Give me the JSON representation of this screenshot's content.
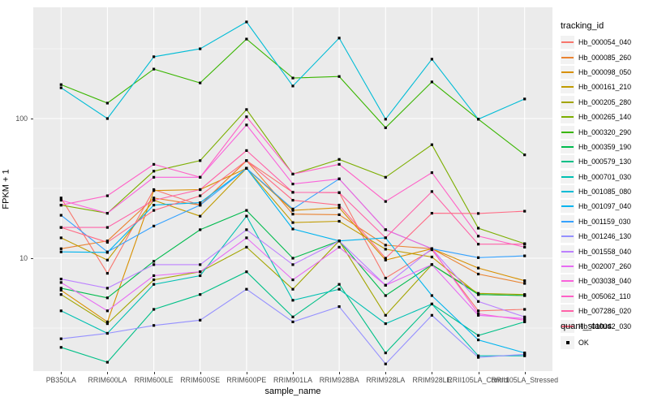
{
  "chart_data": {
    "type": "line",
    "title": "",
    "xlabel": "sample_name",
    "ylabel": "FPKM + 1",
    "y_scale": "log10",
    "ylim": [
      1.55,
      630
    ],
    "grid": "on",
    "legend_position": "right",
    "colors": {
      "panel_bg": "#EBEBEB",
      "grid": "#FFFFFF",
      "tick_text": "#4D4D4D",
      "tick_mark": "#333333",
      "point": "#000000",
      "legend_key_bg": "#F2F2F2"
    },
    "y_ticks": [
      {
        "value": 100,
        "label": "100"
      },
      {
        "value": 10,
        "label": "10"
      }
    ],
    "y_minor": [
      3.162,
      31.62,
      316.2
    ],
    "categories": [
      "PB350LA",
      "RRIM600LA",
      "RRIM600LE",
      "RRIM600SE",
      "RRIM600PE",
      "RRIM901LA",
      "RRIM928BA",
      "RRIM928LA",
      "RRIM928LE",
      "RRII105LA_Control",
      "RRII105LA_Stressed"
    ],
    "legend_title": "tracking_id",
    "quant_legend": {
      "title": "quant_status",
      "item_label": "OK"
    },
    "series": [
      {
        "name": "Hb_000054_040",
        "color": "#F8766D",
        "values": [
          27,
          7.8,
          31,
          24,
          50,
          29.6,
          29.5,
          7.2,
          11.5,
          4.2,
          4.3
        ]
      },
      {
        "name": "Hb_000085_260",
        "color": "#EA8331",
        "values": [
          11.7,
          13.3,
          27,
          24,
          50,
          20.7,
          20.5,
          12.4,
          11.7,
          7.7,
          6.6
        ]
      },
      {
        "name": "Hb_000098_050",
        "color": "#D89000",
        "values": [
          5.9,
          3.5,
          30.5,
          31,
          44,
          22,
          23,
          9.7,
          11.7,
          8.5,
          6.9
        ]
      },
      {
        "name": "Hb_000161_210",
        "color": "#C09B00",
        "values": [
          14,
          9.7,
          26,
          20,
          44,
          18,
          18.4,
          11.6,
          10.2,
          5.5,
          5.4
        ]
      },
      {
        "name": "Hb_000205_280",
        "color": "#A3A500",
        "values": [
          5.5,
          3.4,
          7,
          8,
          12,
          6,
          13.3,
          3.9,
          9,
          5.6,
          5.5
        ]
      },
      {
        "name": "Hb_000265_140",
        "color": "#7CAE00",
        "values": [
          24,
          21,
          42,
          50,
          116,
          40,
          51,
          38,
          65,
          16.4,
          12.7
        ]
      },
      {
        "name": "Hb_000320_290",
        "color": "#39B600",
        "values": [
          175,
          129,
          226,
          180,
          371,
          195,
          200,
          86,
          183,
          99,
          55
        ]
      },
      {
        "name": "Hb_000359_190",
        "color": "#00BB4E",
        "values": [
          6.1,
          5.2,
          9.5,
          16,
          22,
          10,
          13.3,
          5.4,
          9,
          5.5,
          5.4
        ]
      },
      {
        "name": "Hb_000579_130",
        "color": "#00C087",
        "values": [
          2.3,
          1.8,
          4.3,
          5.5,
          8,
          3.8,
          6.5,
          2.1,
          4.7,
          2.8,
          3.5
        ]
      },
      {
        "name": "Hb_000701_030",
        "color": "#00C0B2",
        "values": [
          4.2,
          2.9,
          6.5,
          7.5,
          20,
          5,
          6,
          3.4,
          4.7,
          2.0,
          2.0
        ]
      },
      {
        "name": "Hb_001085_080",
        "color": "#00BCD6",
        "values": [
          166,
          100,
          277,
          316,
          492,
          171,
          377,
          99,
          266,
          99,
          138
        ]
      },
      {
        "name": "Hb_001097_040",
        "color": "#00B4EF",
        "values": [
          11.1,
          11,
          24,
          25,
          44,
          16.2,
          13.3,
          14,
          5.4,
          2.6,
          2.1
        ]
      },
      {
        "name": "Hb_001159_030",
        "color": "#35A2FF",
        "values": [
          20.3,
          11.1,
          17,
          24,
          44,
          22.5,
          37,
          16,
          11.7,
          10.1,
          10.4
        ]
      },
      {
        "name": "Hb_001246_130",
        "color": "#9590FF",
        "values": [
          2.65,
          2.9,
          3.3,
          3.6,
          6.0,
          3.5,
          4.5,
          1.75,
          3.9,
          1.95,
          2.05
        ]
      },
      {
        "name": "Hb_001558_040",
        "color": "#BC81FF",
        "values": [
          7.1,
          6.1,
          9,
          9,
          16,
          9,
          13.3,
          6.4,
          11.7,
          4.9,
          3.8
        ]
      },
      {
        "name": "Hb_002007_260",
        "color": "#E76BF3",
        "values": [
          6.7,
          4.2,
          7.5,
          8,
          14,
          7,
          12,
          6.4,
          9.0,
          3.9,
          3.7
        ]
      },
      {
        "name": "Hb_003038_040",
        "color": "#FA62DB",
        "values": [
          26,
          21,
          38,
          38,
          90,
          34,
          37,
          16,
          11.7,
          4.0,
          3.6
        ]
      },
      {
        "name": "Hb_005062_110",
        "color": "#FF61C7",
        "values": [
          24,
          28,
          47,
          38,
          103,
          40,
          47,
          25.5,
          41,
          14.4,
          12.0
        ]
      },
      {
        "name": "Hb_007286_020",
        "color": "#FF63A8",
        "values": [
          16.6,
          16.6,
          26,
          31,
          59,
          29.6,
          29.5,
          14,
          30,
          12.6,
          12.6
        ]
      },
      {
        "name": "Hb_010042_030",
        "color": "#FF6B85",
        "values": [
          16.6,
          13,
          22,
          28,
          50,
          26,
          24,
          10,
          21,
          20.9,
          21.7
        ]
      }
    ]
  }
}
